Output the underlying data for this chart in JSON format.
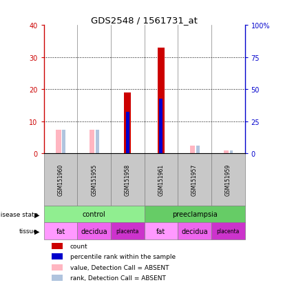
{
  "title": "GDS2548 / 1561731_at",
  "samples": [
    "GSM151960",
    "GSM151955",
    "GSM151958",
    "GSM151961",
    "GSM151957",
    "GSM151959"
  ],
  "count_values": [
    0,
    0,
    19,
    33,
    0,
    0
  ],
  "percentile_rank": [
    0,
    0,
    13,
    17,
    0,
    0
  ],
  "absent_value": [
    7.5,
    7.5,
    0,
    0,
    2.5,
    1.0
  ],
  "absent_rank": [
    7.5,
    7.5,
    0,
    0,
    2.5,
    1.0
  ],
  "ylim_left": [
    0,
    40
  ],
  "ylim_right": [
    0,
    100
  ],
  "yticks_left": [
    0,
    10,
    20,
    30,
    40
  ],
  "yticks_right": [
    0,
    25,
    50,
    75,
    100
  ],
  "ytick_labels_right": [
    "0",
    "25",
    "50",
    "75",
    "100%"
  ],
  "disease_state_groups": [
    {
      "label": "control",
      "start": 0,
      "end": 3,
      "color": "#90EE90"
    },
    {
      "label": "preeclampsia",
      "start": 3,
      "end": 6,
      "color": "#66CC66"
    }
  ],
  "tissue_colors": {
    "fat": "#FF99FF",
    "decidua": "#EE66EE",
    "placenta": "#CC33CC"
  },
  "tissue_order": [
    "fat",
    "decidua",
    "placenta",
    "fat",
    "decidua",
    "placenta"
  ],
  "count_color": "#CC0000",
  "percentile_color": "#0000CC",
  "absent_value_color": "#FFB6C1",
  "absent_rank_color": "#B0C4DE",
  "background_color": "#FFFFFF"
}
